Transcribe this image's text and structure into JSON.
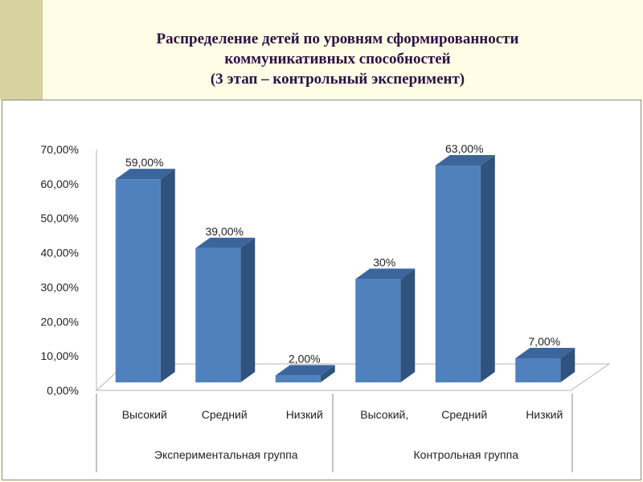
{
  "title": {
    "line1": "Распределение детей по уровням сформированности",
    "line2": "коммуникативных способностей",
    "line3": "(3 этап – контрольный эксперимент)"
  },
  "colors": {
    "bar_front": "#4f81bd",
    "bar_side": "#2f527f",
    "bar_top": "#3c659c",
    "title": "#2e1045"
  },
  "chart_data": {
    "type": "bar",
    "ylim": [
      0,
      70
    ],
    "y_ticks": [
      "0,00%",
      "10,00%",
      "20,00%",
      "30,00%",
      "40,00%",
      "50,00%",
      "60,00%",
      "70,00%"
    ],
    "categories": [
      "Высокий",
      "Средний",
      "Низкий",
      "Высокий,",
      "Средний",
      "Низкий"
    ],
    "groups": [
      {
        "label": "Экспериментальная группа",
        "span": 3
      },
      {
        "label": "Контрольная группа",
        "span": 3
      }
    ],
    "values": [
      59,
      39,
      2,
      30,
      63,
      7
    ],
    "data_labels": [
      "59,00%",
      "39,00%",
      "2,00%",
      "30%",
      "63,00%",
      "7,00%"
    ],
    "grid": false,
    "legend": "none"
  }
}
